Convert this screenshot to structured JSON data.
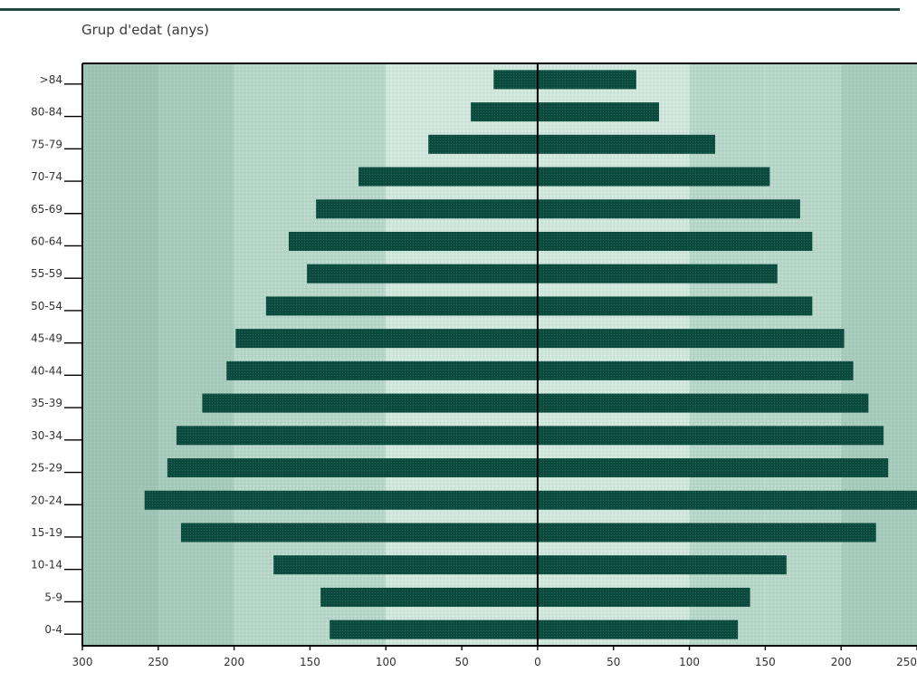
{
  "chart_data": {
    "type": "bar",
    "subtype": "population-pyramid",
    "title": "",
    "ylabel": "Grup d'edat (anys)",
    "xlabel": "",
    "xlim": [
      -300,
      250
    ],
    "x_ticks": [
      -300,
      -250,
      -200,
      -150,
      -100,
      -50,
      0,
      50,
      100,
      150,
      200,
      250
    ],
    "x_tick_labels": [
      "300",
      "250",
      "200",
      "150",
      "100",
      "50",
      "0",
      "50",
      "100",
      "150",
      "200",
      "250"
    ],
    "categories": [
      "0-4",
      "5-9",
      "10-14",
      "15-19",
      "20-24",
      "25-29",
      "30-34",
      "35-39",
      "40-44",
      "45-49",
      "50-54",
      "55-59",
      "60-64",
      "65-69",
      "70-74",
      "75-79",
      "80-84",
      ">84"
    ],
    "series": [
      {
        "side": "left",
        "values": [
          137,
          143,
          174,
          235,
          259,
          244,
          238,
          221,
          205,
          199,
          179,
          152,
          164,
          146,
          118,
          72,
          44,
          29
        ]
      },
      {
        "side": "right",
        "values": [
          132,
          140,
          164,
          223,
          251,
          231,
          228,
          218,
          208,
          202,
          181,
          158,
          181,
          173,
          153,
          117,
          80,
          65
        ]
      }
    ],
    "grid": false,
    "colors": {
      "bar": "#0d4a3e",
      "band_outer": "#9fc5b6",
      "band_mid": "#b7d6ca",
      "band_inner": "#cfe6dc",
      "axis": "#000000"
    }
  }
}
